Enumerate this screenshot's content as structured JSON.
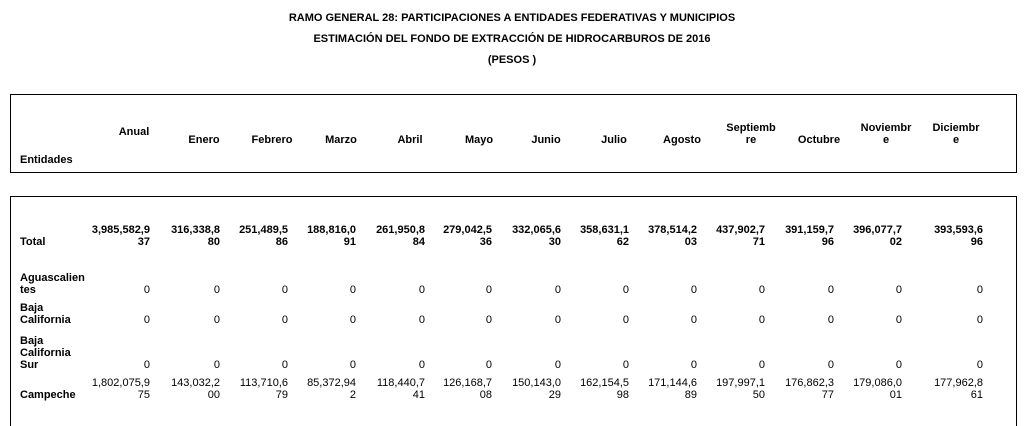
{
  "report": {
    "title": "RAMO GENERAL 28: PARTICIPACIONES A ENTIDADES FEDERATIVAS Y MUNICIPIOS",
    "subtitle": "ESTIMACIÓN DEL FONDO DE EXTRACCIÓN DE HIDROCARBUROS DE 2016",
    "units": "(PESOS )"
  },
  "table": {
    "headers": [
      [
        "Entidades"
      ],
      [
        "Anual"
      ],
      [
        "Enero"
      ],
      [
        "Febrero"
      ],
      [
        "Marzo"
      ],
      [
        "Abril"
      ],
      [
        "Mayo"
      ],
      [
        "Junio"
      ],
      [
        "Julio"
      ],
      [
        "Agosto"
      ],
      [
        "Septiemb",
        "re"
      ],
      [
        "Octubre"
      ],
      [
        "Noviembr",
        "e"
      ],
      [
        "Diciembr",
        "e"
      ]
    ],
    "rows": [
      {
        "name": [
          "Total"
        ],
        "bold": true,
        "values": [
          [
            "3,985,582,9",
            "37"
          ],
          [
            "316,338,8",
            "80"
          ],
          [
            "251,489,5",
            "86"
          ],
          [
            "188,816,0",
            "91"
          ],
          [
            "261,950,8",
            "84"
          ],
          [
            "279,042,5",
            "36"
          ],
          [
            "332,065,6",
            "30"
          ],
          [
            "358,631,1",
            "62"
          ],
          [
            "378,514,2",
            "03"
          ],
          [
            "437,902,7",
            "71"
          ],
          [
            "391,159,7",
            "96"
          ],
          [
            "396,077,7",
            "02"
          ],
          [
            "393,593,6",
            "96"
          ]
        ]
      },
      {
        "name": [
          "Aguascalien",
          "tes"
        ],
        "bold": false,
        "values": [
          [
            "0"
          ],
          [
            "0"
          ],
          [
            "0"
          ],
          [
            "0"
          ],
          [
            "0"
          ],
          [
            "0"
          ],
          [
            "0"
          ],
          [
            "0"
          ],
          [
            "0"
          ],
          [
            "0"
          ],
          [
            "0"
          ],
          [
            "0"
          ],
          [
            "0"
          ]
        ]
      },
      {
        "name": [
          "Baja",
          "California"
        ],
        "bold": false,
        "values": [
          [
            "0"
          ],
          [
            "0"
          ],
          [
            "0"
          ],
          [
            "0"
          ],
          [
            "0"
          ],
          [
            "0"
          ],
          [
            "0"
          ],
          [
            "0"
          ],
          [
            "0"
          ],
          [
            "0"
          ],
          [
            "0"
          ],
          [
            "0"
          ],
          [
            "0"
          ]
        ]
      },
      {
        "name": [
          "Baja",
          "California",
          "Sur"
        ],
        "bold": false,
        "values": [
          [
            "0"
          ],
          [
            "0"
          ],
          [
            "0"
          ],
          [
            "0"
          ],
          [
            "0"
          ],
          [
            "0"
          ],
          [
            "0"
          ],
          [
            "0"
          ],
          [
            "0"
          ],
          [
            "0"
          ],
          [
            "0"
          ],
          [
            "0"
          ],
          [
            "0"
          ]
        ]
      },
      {
        "name": [
          "Campeche"
        ],
        "bold": false,
        "values": [
          [
            "1,802,075,9",
            "75"
          ],
          [
            "143,032,2",
            "00"
          ],
          [
            "113,710,6",
            "79"
          ],
          [
            "85,372,94",
            "2"
          ],
          [
            "118,440,7",
            "41"
          ],
          [
            "126,168,7",
            "08"
          ],
          [
            "150,143,0",
            "29"
          ],
          [
            "162,154,5",
            "98"
          ],
          [
            "171,144,6",
            "89"
          ],
          [
            "197,997,1",
            "50"
          ],
          [
            "176,862,3",
            "77"
          ],
          [
            "179,086,0",
            "01"
          ],
          [
            "177,962,8",
            "61"
          ]
        ]
      }
    ]
  }
}
